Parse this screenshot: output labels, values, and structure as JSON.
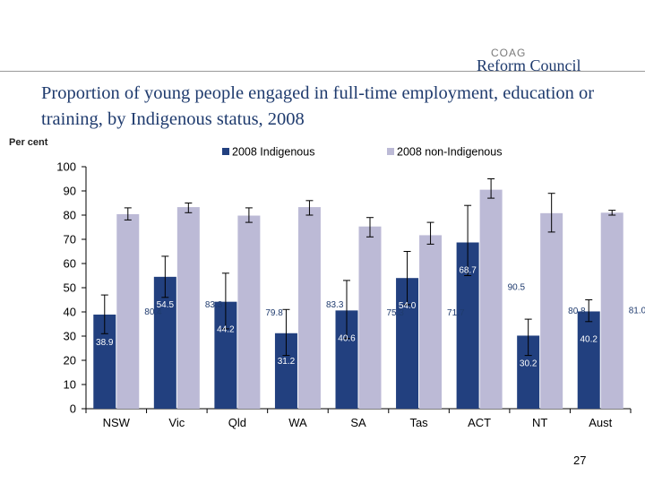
{
  "header": {
    "logo_top": "COAG",
    "logo_main": "Reform Council",
    "title": "Proportion of young people engaged in full-time employment, education or training, by Indigenous status, 2008",
    "y_unit": "Per cent",
    "page_number": "27"
  },
  "colors": {
    "indigenous": "#22407f",
    "non_indigenous": "#bcbad6",
    "title": "#1f3b6e",
    "axis": "#000000"
  },
  "chart_data": {
    "type": "bar",
    "categories": [
      "NSW",
      "Vic",
      "Qld",
      "WA",
      "SA",
      "Tas",
      "ACT",
      "NT",
      "Aust"
    ],
    "series": [
      {
        "name": "2008 Indigenous",
        "values": [
          38.9,
          54.5,
          44.2,
          31.2,
          40.6,
          54.0,
          68.7,
          30.2,
          40.2
        ],
        "labels": [
          "38.9",
          "54.5",
          "44.2",
          "31.2",
          "40.6",
          "54.0",
          "68.7",
          "30.2",
          "40.2"
        ],
        "error_low": [
          31,
          46,
          33,
          22,
          29,
          43,
          55,
          22,
          36
        ],
        "error_high": [
          47,
          63,
          56,
          41,
          53,
          65,
          84,
          37,
          45
        ]
      },
      {
        "name": "2008 non-Indigenous",
        "values": [
          80.4,
          83.3,
          79.8,
          83.3,
          75.3,
          71.7,
          90.5,
          80.8,
          81.0
        ],
        "labels": [
          "80.4",
          "83.3",
          "79.8",
          "83.3",
          "75.3",
          "71.7",
          "90.5",
          "80.8",
          "81.0"
        ],
        "error_low": [
          78,
          81,
          77,
          80,
          71,
          68,
          87,
          73,
          80
        ],
        "error_high": [
          83,
          85,
          83,
          86,
          79,
          77,
          95,
          89,
          82
        ]
      }
    ],
    "ylim": [
      0,
      100
    ],
    "yticks": [
      0,
      10,
      20,
      30,
      40,
      50,
      60,
      70,
      80,
      90,
      100
    ],
    "legend": "top",
    "grid": false
  }
}
